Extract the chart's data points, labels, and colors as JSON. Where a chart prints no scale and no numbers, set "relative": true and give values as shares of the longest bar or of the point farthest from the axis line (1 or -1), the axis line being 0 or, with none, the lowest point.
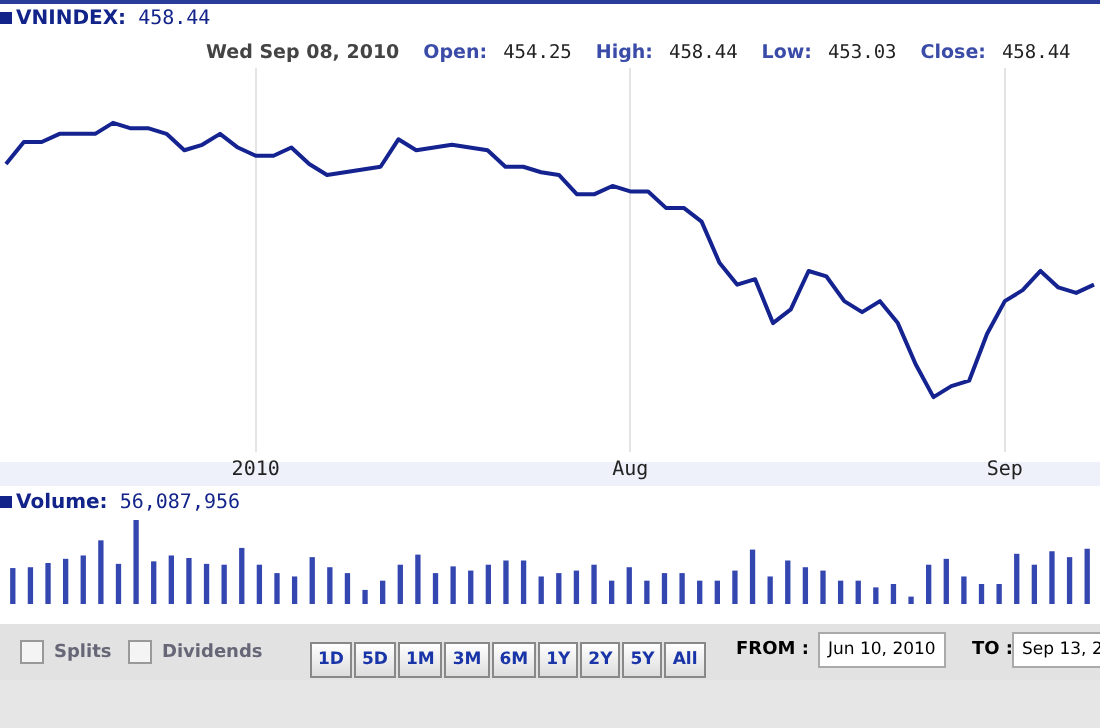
{
  "chart_data": [
    {
      "type": "line",
      "title": "VNINDEX: 458.44",
      "annotations": [
        "Wed Sep 08, 2010",
        "Open:",
        "454.25",
        "High:",
        "458.44",
        "Low:",
        "453.03",
        "Close:",
        "458.44"
      ],
      "relative": true,
      "grid": "x",
      "marker": "none",
      "color": "#142390",
      "categories": [
        null,
        null,
        null,
        null,
        null,
        null,
        null,
        null,
        null,
        null,
        null,
        null,
        null,
        null,
        "2010",
        null,
        null,
        null,
        null,
        null,
        null,
        null,
        null,
        null,
        null,
        null,
        null,
        null,
        null,
        null,
        null,
        null,
        null,
        null,
        null,
        "Aug",
        null,
        null,
        null,
        null,
        null,
        null,
        null,
        null,
        null,
        null,
        null,
        null,
        null,
        null,
        null,
        null,
        null,
        null,
        null,
        null,
        "Sep",
        null,
        null,
        null,
        null,
        null
      ],
      "values": [
        0.85,
        0.93,
        0.93,
        0.96,
        0.96,
        0.96,
        1,
        0.98,
        0.98,
        0.96,
        0.9,
        0.92,
        0.96,
        0.91,
        0.88,
        0.88,
        0.91,
        0.85,
        0.81,
        0.82,
        0.83,
        0.84,
        0.94,
        0.9,
        0.91,
        0.92,
        0.91,
        0.9,
        0.84,
        0.84,
        0.82,
        0.81,
        0.74,
        0.74,
        0.77,
        0.75,
        0.75,
        0.69,
        0.69,
        0.64,
        0.49,
        0.41,
        0.43,
        0.27,
        0.32,
        0.46,
        0.44,
        0.35,
        0.31,
        0.35,
        0.27,
        0.12,
        0,
        0.04,
        0.06,
        0.23,
        0.35,
        0.39,
        0.46,
        0.4,
        0.38,
        0.41
      ]
    },
    {
      "type": "bar",
      "title": "Volume: 56,087,956",
      "relative": true,
      "color": "#3446b0",
      "categories": [
        null,
        null,
        null,
        null,
        null,
        null,
        null,
        null,
        null,
        null,
        null,
        null,
        null,
        null,
        null,
        null,
        null,
        null,
        null,
        null,
        null,
        null,
        null,
        null,
        null,
        null,
        null,
        null,
        null,
        null,
        null,
        null,
        null,
        null,
        null,
        null,
        null,
        null,
        null,
        null,
        null,
        null,
        null,
        null,
        null,
        null,
        null,
        null,
        null,
        null,
        null,
        null,
        null,
        null,
        null,
        null,
        null,
        null,
        null,
        null,
        null,
        null
      ],
      "values": [
        0.42,
        0.43,
        0.48,
        0.53,
        0.57,
        0.75,
        0.47,
        1,
        0.5,
        0.57,
        0.54,
        0.47,
        0.46,
        0.66,
        0.46,
        0.36,
        0.32,
        0.55,
        0.43,
        0.36,
        0.16,
        0.27,
        0.46,
        0.58,
        0.36,
        0.44,
        0.39,
        0.46,
        0.51,
        0.51,
        0.32,
        0.36,
        0.39,
        0.46,
        0.27,
        0.43,
        0.27,
        0.36,
        0.36,
        0.27,
        0.27,
        0.39,
        0.64,
        0.32,
        0.51,
        0.43,
        0.39,
        0.27,
        0.27,
        0.19,
        0.23,
        0.08,
        0.46,
        0.53,
        0.32,
        0.23,
        0.23,
        0.59,
        0.46,
        0.62,
        0.55,
        0.65
      ]
    },
    {
      "type": "other",
      "annotations": [
        "Splits",
        "Dividends",
        "1D",
        "5D",
        "1M",
        "3M",
        "6M",
        "1Y",
        "2Y",
        "5Y",
        "All",
        "FROM :",
        "Jun 10, 2010",
        "TO :",
        "Sep 13, 2"
      ]
    }
  ]
}
